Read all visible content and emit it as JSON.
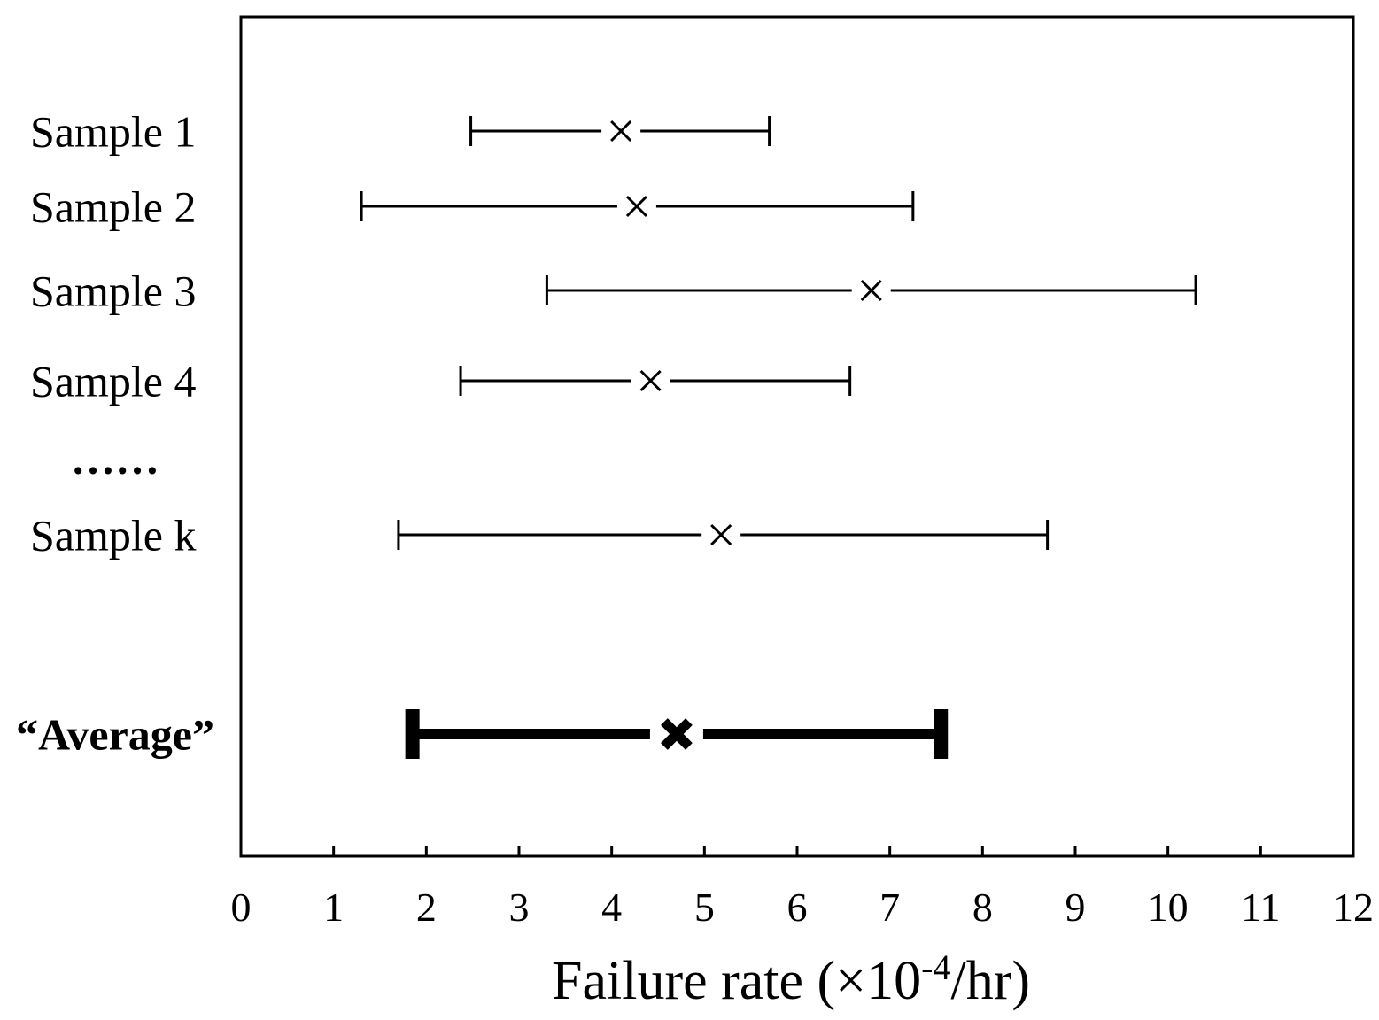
{
  "chart_data": {
    "type": "interval",
    "xlabel": "Failure rate (×10",
    "xlabel_superscript": "-4",
    "xlabel_suffix": "/hr)",
    "xlim": [
      0,
      12
    ],
    "xticks": [
      0,
      1,
      2,
      3,
      4,
      5,
      6,
      7,
      8,
      9,
      10,
      11,
      12
    ],
    "grid": false,
    "rows": [
      {
        "label": "Sample 1",
        "low": 2.48,
        "point": 4.1,
        "high": 5.7,
        "style": "thin"
      },
      {
        "label": "Sample 2",
        "low": 1.3,
        "point": 4.27,
        "high": 7.25,
        "style": "thin"
      },
      {
        "label": "Sample 3",
        "low": 3.3,
        "point": 6.8,
        "high": 10.3,
        "style": "thin"
      },
      {
        "label": "Sample 4",
        "low": 2.37,
        "point": 4.42,
        "high": 6.57,
        "style": "thin"
      },
      {
        "label": "……",
        "style": "ellipsis"
      },
      {
        "label": "Sample k",
        "low": 1.7,
        "point": 5.18,
        "high": 8.7,
        "style": "thin"
      },
      {
        "label": "“Average”",
        "low": 1.85,
        "point": 4.7,
        "high": 7.55,
        "style": "bold"
      }
    ]
  }
}
